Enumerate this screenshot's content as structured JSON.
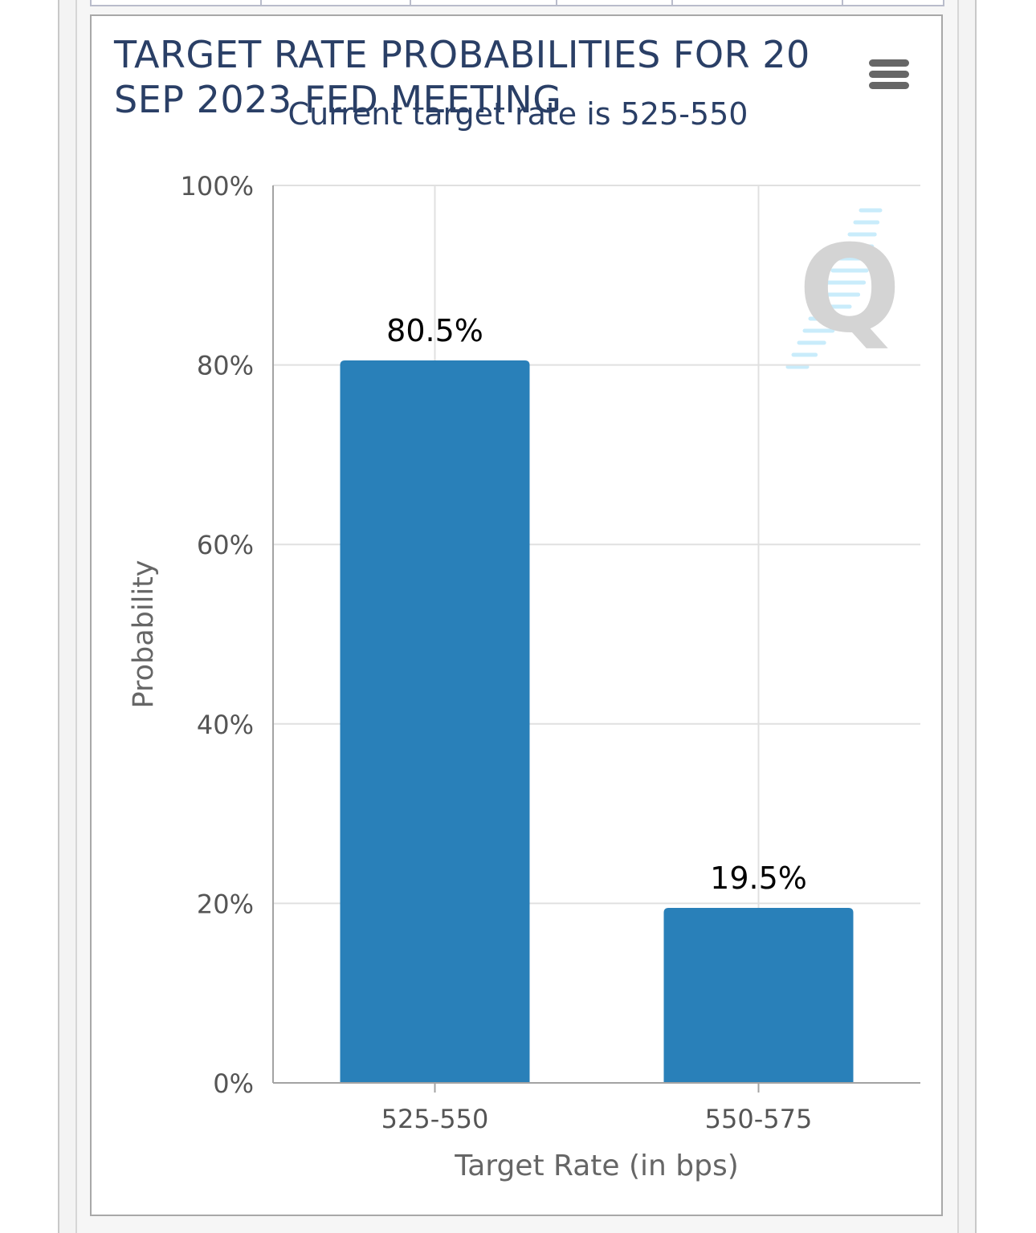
{
  "chart_data": {
    "type": "bar",
    "title": "TARGET RATE PROBABILITIES FOR 20 SEP 2023 FED MEETING",
    "subtitle": "Current target rate is 525-550",
    "xlabel": "Target Rate (in bps)",
    "ylabel": "Probability",
    "categories": [
      "525-550",
      "550-575"
    ],
    "values": [
      80.5,
      19.5
    ],
    "data_labels": [
      "80.5%",
      "19.5%"
    ],
    "ylim": [
      0,
      100
    ],
    "yticks": [
      0,
      20,
      40,
      60,
      80,
      100
    ],
    "ytick_labels": [
      "0%",
      "20%",
      "40%",
      "60%",
      "80%",
      "100%"
    ],
    "grid": true,
    "bar_color": "#2980b9"
  },
  "menu": {
    "icon": "hamburger-menu-icon"
  },
  "watermark": {
    "icon": "q-logo-watermark",
    "text": "Q"
  }
}
